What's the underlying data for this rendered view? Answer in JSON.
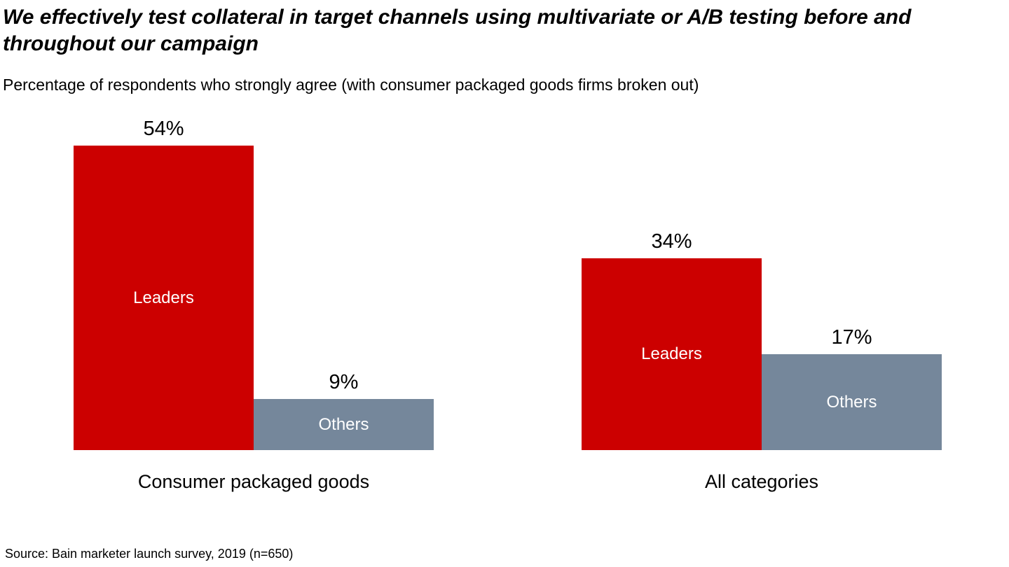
{
  "title": "We effectively test collateral in target channels using multivariate or A/B testing before and throughout our campaign",
  "subtitle": "Percentage of respondents who strongly agree (with consumer packaged goods firms broken out)",
  "source": "Source: Bain marketer launch survey, 2019 (n=650)",
  "colors": {
    "leaders": "#cc0000",
    "others": "#75879b",
    "text": "#000000",
    "bar_text": "#ffffff",
    "background": "#ffffff"
  },
  "chart_data": {
    "type": "bar",
    "title": "We effectively test collateral in target channels using multivariate or A/B testing before and throughout our campaign",
    "subtitle": "Percentage of respondents who strongly agree (with consumer packaged goods firms broken out)",
    "unit": "%",
    "ylim": [
      0,
      54
    ],
    "grid": false,
    "axes_hidden": true,
    "legend": "series names printed inside bars",
    "categories": [
      "Consumer packaged goods",
      "All categories"
    ],
    "series": [
      {
        "name": "Leaders",
        "color": "#cc0000",
        "values": [
          54,
          34
        ]
      },
      {
        "name": "Others",
        "color": "#75879b",
        "values": [
          9,
          17
        ]
      }
    ],
    "groups": [
      {
        "category": "Consumer packaged goods",
        "bars": [
          {
            "series": "Leaders",
            "value": 54,
            "label": "54%"
          },
          {
            "series": "Others",
            "value": 9,
            "label": "9%"
          }
        ]
      },
      {
        "category": "All categories",
        "bars": [
          {
            "series": "Leaders",
            "value": 34,
            "label": "34%"
          },
          {
            "series": "Others",
            "value": 17,
            "label": "17%"
          }
        ]
      }
    ]
  }
}
